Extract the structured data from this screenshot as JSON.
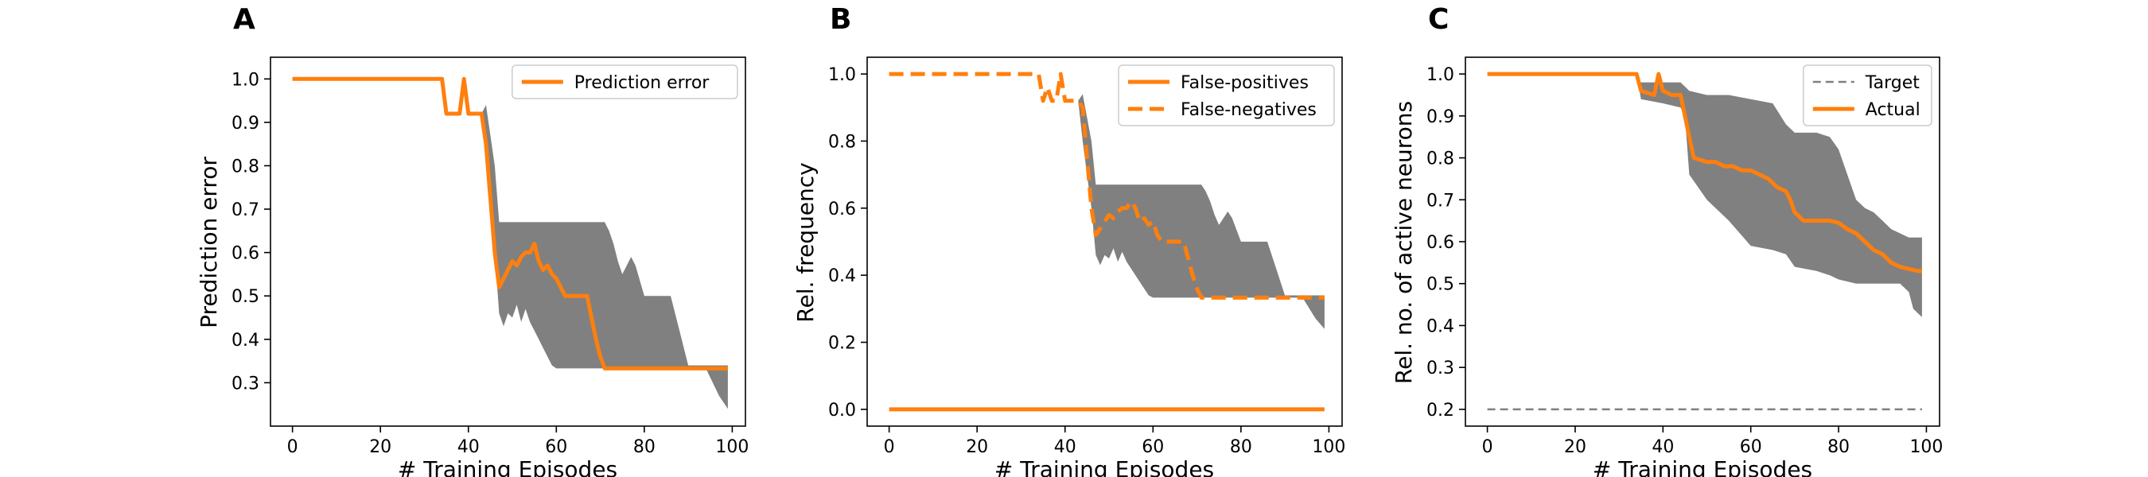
{
  "figure": {
    "panels": [
      {
        "letter": "A",
        "xlabel": "# Training Episodes",
        "ylabel": "Prediction error"
      },
      {
        "letter": "B",
        "xlabel": "# Training Episodes",
        "ylabel": "Rel. frequency"
      },
      {
        "letter": "C",
        "xlabel": "# Training Episodes",
        "ylabel": "Rel. no. of active neurons"
      }
    ]
  },
  "colors": {
    "series": "#ff7f0e",
    "band": "#808080",
    "target": "#808080"
  },
  "chart_data": [
    {
      "type": "line",
      "title": "",
      "xlabel": "# Training Episodes",
      "ylabel": "Prediction error",
      "xlim": [
        -5,
        103
      ],
      "ylim": [
        0.2,
        1.05
      ],
      "xticks": [
        0,
        20,
        40,
        60,
        80,
        100
      ],
      "yticks": [
        0.3,
        0.4,
        0.5,
        0.6,
        0.7,
        0.8,
        0.9,
        1.0
      ],
      "legend": "top-right",
      "series": [
        {
          "name": "Prediction error",
          "style": "solid",
          "x": [
            0,
            34,
            35,
            38,
            39,
            40,
            43,
            44,
            46,
            47,
            48,
            49,
            50,
            51,
            52,
            53,
            54,
            55,
            56,
            57,
            58,
            59,
            60,
            61,
            62,
            63,
            64,
            65,
            66,
            67,
            68,
            69,
            70,
            71,
            72,
            99
          ],
          "values": [
            1.0,
            1.0,
            0.92,
            0.92,
            1.0,
            0.92,
            0.92,
            0.85,
            0.6,
            0.52,
            0.54,
            0.56,
            0.58,
            0.57,
            0.59,
            0.6,
            0.6,
            0.62,
            0.58,
            0.56,
            0.57,
            0.55,
            0.54,
            0.52,
            0.5,
            0.5,
            0.5,
            0.5,
            0.5,
            0.5,
            0.45,
            0.4,
            0.36,
            0.333,
            0.333,
            0.333
          ]
        }
      ],
      "band": {
        "x": [
          0,
          34,
          35,
          38,
          39,
          40,
          43,
          44,
          46,
          47,
          48,
          49,
          50,
          51,
          52,
          53,
          54,
          55,
          56,
          57,
          58,
          59,
          60,
          62,
          65,
          68,
          70,
          71,
          72,
          73,
          74,
          75,
          76,
          77,
          78,
          80,
          84,
          85,
          86,
          88,
          90,
          94,
          97,
          99
        ],
        "upper": [
          1.0,
          1.0,
          0.92,
          0.92,
          1.0,
          0.92,
          0.92,
          0.94,
          0.8,
          0.67,
          0.67,
          0.67,
          0.67,
          0.67,
          0.67,
          0.67,
          0.67,
          0.67,
          0.67,
          0.67,
          0.67,
          0.67,
          0.67,
          0.67,
          0.67,
          0.67,
          0.67,
          0.67,
          0.65,
          0.62,
          0.58,
          0.55,
          0.57,
          0.59,
          0.57,
          0.5,
          0.5,
          0.5,
          0.5,
          0.42,
          0.34,
          0.34,
          0.34,
          0.34
        ],
        "lower": [
          1.0,
          1.0,
          0.92,
          0.92,
          1.0,
          0.92,
          0.92,
          0.8,
          0.6,
          0.46,
          0.43,
          0.46,
          0.45,
          0.48,
          0.44,
          0.47,
          0.44,
          0.42,
          0.4,
          0.38,
          0.36,
          0.34,
          0.333,
          0.333,
          0.333,
          0.333,
          0.333,
          0.333,
          0.333,
          0.333,
          0.333,
          0.333,
          0.333,
          0.333,
          0.333,
          0.333,
          0.333,
          0.333,
          0.333,
          0.333,
          0.333,
          0.333,
          0.27,
          0.24
        ]
      }
    },
    {
      "type": "line",
      "title": "",
      "xlabel": "# Training Episodes",
      "ylabel": "Rel. frequency",
      "xlim": [
        -5,
        103
      ],
      "ylim": [
        -0.05,
        1.05
      ],
      "xticks": [
        0,
        20,
        40,
        60,
        80,
        100
      ],
      "yticks": [
        0.0,
        0.2,
        0.4,
        0.6,
        0.8,
        1.0
      ],
      "legend": "top-right",
      "series": [
        {
          "name": "False-positives",
          "style": "solid",
          "x": [
            0,
            99
          ],
          "values": [
            0.0,
            0.0
          ]
        },
        {
          "name": "False-negatives",
          "style": "dashed",
          "x": [
            0,
            34,
            35,
            36,
            37,
            38,
            39,
            40,
            41,
            43,
            44,
            45,
            46,
            47,
            48,
            49,
            50,
            51,
            52,
            53,
            54,
            55,
            56,
            57,
            58,
            59,
            60,
            61,
            62,
            63,
            64,
            65,
            66,
            67,
            68,
            69,
            70,
            71,
            72,
            99
          ],
          "values": [
            1.0,
            1.0,
            0.92,
            0.96,
            0.92,
            0.92,
            1.0,
            0.92,
            0.92,
            0.92,
            0.9,
            0.75,
            0.6,
            0.52,
            0.54,
            0.56,
            0.58,
            0.57,
            0.59,
            0.6,
            0.6,
            0.62,
            0.6,
            0.56,
            0.57,
            0.55,
            0.56,
            0.52,
            0.5,
            0.5,
            0.5,
            0.5,
            0.5,
            0.5,
            0.45,
            0.4,
            0.36,
            0.333,
            0.333,
            0.333
          ]
        }
      ],
      "band": {
        "x": [
          0,
          34,
          35,
          38,
          39,
          40,
          43,
          44,
          46,
          47,
          48,
          49,
          50,
          51,
          52,
          53,
          54,
          55,
          56,
          57,
          58,
          59,
          60,
          62,
          65,
          68,
          70,
          71,
          72,
          73,
          74,
          75,
          76,
          77,
          78,
          80,
          84,
          85,
          86,
          88,
          90,
          94,
          97,
          99
        ],
        "upper": [
          1.0,
          1.0,
          0.92,
          0.92,
          1.0,
          0.92,
          0.92,
          0.94,
          0.8,
          0.67,
          0.67,
          0.67,
          0.67,
          0.67,
          0.67,
          0.67,
          0.67,
          0.67,
          0.67,
          0.67,
          0.67,
          0.67,
          0.67,
          0.67,
          0.67,
          0.67,
          0.67,
          0.67,
          0.65,
          0.62,
          0.58,
          0.55,
          0.57,
          0.59,
          0.57,
          0.5,
          0.5,
          0.5,
          0.5,
          0.42,
          0.34,
          0.34,
          0.34,
          0.34
        ],
        "lower": [
          1.0,
          1.0,
          0.92,
          0.92,
          1.0,
          0.92,
          0.92,
          0.8,
          0.6,
          0.46,
          0.43,
          0.46,
          0.45,
          0.48,
          0.44,
          0.47,
          0.44,
          0.42,
          0.4,
          0.38,
          0.36,
          0.34,
          0.333,
          0.333,
          0.333,
          0.333,
          0.333,
          0.333,
          0.333,
          0.333,
          0.333,
          0.333,
          0.333,
          0.333,
          0.333,
          0.333,
          0.333,
          0.333,
          0.333,
          0.333,
          0.333,
          0.333,
          0.27,
          0.24
        ]
      }
    },
    {
      "type": "line",
      "title": "",
      "xlabel": "# Training Episodes",
      "ylabel": "Rel. no. of active neurons",
      "xlim": [
        -5,
        103
      ],
      "ylim": [
        0.16,
        1.04
      ],
      "xticks": [
        0,
        20,
        40,
        60,
        80,
        100
      ],
      "yticks": [
        0.2,
        0.3,
        0.4,
        0.5,
        0.6,
        0.7,
        0.8,
        0.9,
        1.0
      ],
      "legend": "top-right",
      "series": [
        {
          "name": "Target",
          "style": "dashed",
          "x": [
            0,
            99
          ],
          "values": [
            0.2,
            0.2
          ]
        },
        {
          "name": "Actual",
          "style": "solid",
          "x": [
            0,
            34,
            35,
            38,
            39,
            40,
            42,
            44,
            45,
            46,
            47,
            50,
            52,
            54,
            56,
            58,
            60,
            62,
            64,
            65,
            66,
            68,
            69,
            70,
            72,
            74,
            76,
            78,
            80,
            82,
            84,
            86,
            88,
            90,
            92,
            94,
            96,
            98,
            99
          ],
          "values": [
            1.0,
            1.0,
            0.96,
            0.95,
            1.0,
            0.96,
            0.95,
            0.95,
            0.9,
            0.85,
            0.8,
            0.79,
            0.79,
            0.78,
            0.78,
            0.77,
            0.77,
            0.76,
            0.75,
            0.74,
            0.73,
            0.72,
            0.7,
            0.67,
            0.65,
            0.65,
            0.65,
            0.65,
            0.645,
            0.63,
            0.62,
            0.6,
            0.58,
            0.57,
            0.55,
            0.54,
            0.535,
            0.53,
            0.53
          ]
        }
      ],
      "band": {
        "x": [
          0,
          34,
          35,
          40,
          44,
          45,
          46,
          50,
          55,
          60,
          65,
          68,
          70,
          75,
          78,
          80,
          84,
          86,
          88,
          90,
          92,
          94,
          96,
          97,
          99
        ],
        "upper": [
          1.0,
          1.0,
          0.98,
          0.98,
          0.98,
          0.97,
          0.96,
          0.95,
          0.95,
          0.94,
          0.93,
          0.88,
          0.86,
          0.86,
          0.85,
          0.82,
          0.7,
          0.68,
          0.67,
          0.65,
          0.63,
          0.62,
          0.61,
          0.61,
          0.61
        ],
        "lower": [
          1.0,
          1.0,
          0.94,
          0.93,
          0.92,
          0.9,
          0.76,
          0.7,
          0.65,
          0.59,
          0.58,
          0.57,
          0.54,
          0.53,
          0.52,
          0.51,
          0.5,
          0.5,
          0.5,
          0.5,
          0.5,
          0.5,
          0.48,
          0.44,
          0.42
        ]
      }
    }
  ]
}
